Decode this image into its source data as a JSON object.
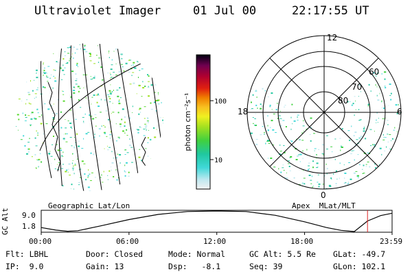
{
  "header": {
    "instrument": "Ultraviolet Imager",
    "date": "01 Jul 00",
    "time": "22:17:55 UT"
  },
  "colorbar": {
    "title": "photon cm⁻²s⁻¹",
    "ticks": [
      "100",
      "10"
    ]
  },
  "panels": {
    "left_label": "Geographic Lat/Lon",
    "right_label": "Apex  MLat/MLT",
    "polar": {
      "mlt_labels": [
        "12",
        "18",
        "6",
        "0"
      ],
      "lat_labels": [
        "60",
        "70",
        "80"
      ]
    }
  },
  "chart_data": {
    "type": "line",
    "title": "",
    "ylabel": "GC Alt",
    "ytick_labels": [
      "9.0",
      "1.8"
    ],
    "xtick_labels": [
      "00:00",
      "06:00",
      "12:00",
      "18:00",
      "23:59"
    ],
    "ylim": [
      1.8,
      9.0
    ],
    "xlim": [
      0,
      23.98
    ],
    "current_time_hours": 22.3,
    "current_time_color": "#dd2222",
    "series": [
      {
        "x": [
          0,
          1,
          1.8,
          2.5,
          4,
          6,
          8,
          10,
          12,
          14,
          16,
          18,
          19.5,
          20.5,
          21.4,
          22.3,
          23.2,
          23.98
        ],
        "values": [
          3.2,
          2.3,
          1.9,
          2.1,
          3.7,
          6.0,
          7.8,
          8.8,
          9.0,
          8.8,
          7.5,
          5.2,
          3.2,
          2.2,
          1.8,
          5.5,
          7.4,
          8.2
        ]
      }
    ]
  },
  "footer": {
    "rows": [
      [
        "Flt: LBHL",
        "Door: Closed",
        "Mode: Normal",
        "GC Alt: 5.5 Re",
        "GLat: -49.7"
      ],
      [
        "IP:  9.0",
        "Gain: 13",
        "Dsp:   -8.1",
        "Seq: 39",
        "GLon: 102.1"
      ]
    ]
  }
}
